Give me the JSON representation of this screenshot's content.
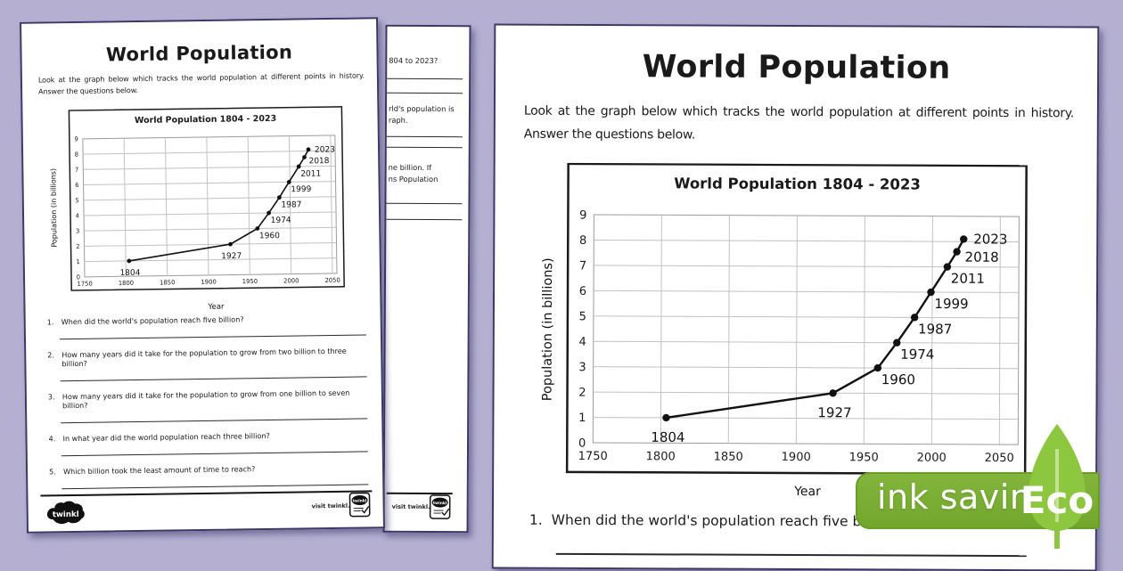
{
  "background_color": "#b5b0d2",
  "worksheet": {
    "title": "World Population",
    "intro_line1": "Look at the graph below which tracks the world population at different points in history.",
    "intro_line2": "Answer the questions below.",
    "question_numbers": [
      "1.",
      "2.",
      "3.",
      "4.",
      "5."
    ],
    "questions": [
      "When did the world's population reach five billion?",
      "How many years did it take for the population to grow from two billion to three billion?",
      "How many years did it take for the population to grow from one billion to seven billion?",
      "In what year did the world population reach three billion?",
      "Which billion took the least amount of time to reach?"
    ],
    "footer": {
      "visit": "visit twinkl.com",
      "brand": "twinkl"
    }
  },
  "middle_page": {
    "fragments": [
      "804 to 2023?",
      "rld's population is",
      "raph.",
      "ne billion. If",
      "ns Population"
    ]
  },
  "eco_badge": {
    "ink_saving_label": "ink saving",
    "eco_label": "Eco",
    "band_color": "#76aa31",
    "leaf_color": "#8dc63f",
    "vein_color": "#c4e293",
    "text_color": "#ffffff"
  },
  "chart_data": {
    "type": "line",
    "title": "World Population 1804 - 2023",
    "xlabel": "Year",
    "ylabel": "Population (in billions)",
    "xlim": [
      1750,
      2050
    ],
    "ylim": [
      0,
      9
    ],
    "xticks": [
      1750,
      1800,
      1850,
      1900,
      1950,
      2000,
      2050
    ],
    "yticks": [
      0,
      1,
      2,
      3,
      4,
      5,
      6,
      7,
      8,
      9
    ],
    "grid": true,
    "line_color": "#111111",
    "points": [
      {
        "year": 1804,
        "value": 1,
        "label_pos": "below-left"
      },
      {
        "year": 1927,
        "value": 2,
        "label_pos": "below-left"
      },
      {
        "year": 1960,
        "value": 3,
        "label_pos": "below-right"
      },
      {
        "year": 1974,
        "value": 4,
        "label_pos": "below-right"
      },
      {
        "year": 1987,
        "value": 5,
        "label_pos": "below-right"
      },
      {
        "year": 1999,
        "value": 6,
        "label_pos": "below-right"
      },
      {
        "year": 2011,
        "value": 7,
        "label_pos": "below-right"
      },
      {
        "year": 2018,
        "value": 7.6,
        "label_pos": "right-low"
      },
      {
        "year": 2023,
        "value": 8.1,
        "label_pos": "right"
      }
    ]
  }
}
